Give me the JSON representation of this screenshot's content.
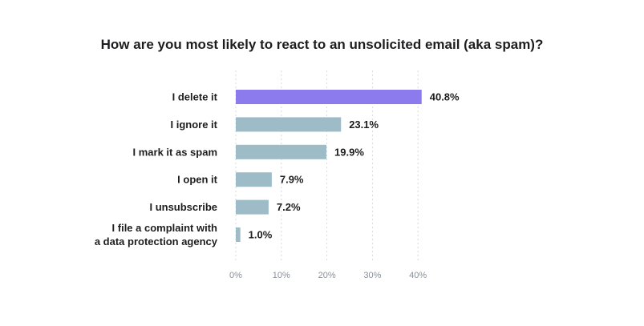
{
  "chart_data": {
    "type": "bar",
    "orientation": "horizontal",
    "title": "How are you most likely to react to an unsolicited email (aka spam)?",
    "categories": [
      [
        "I delete it"
      ],
      [
        "I ignore it"
      ],
      [
        "I mark it as spam"
      ],
      [
        "I open it"
      ],
      [
        "I unsubscribe"
      ],
      [
        "I file a complaint with",
        "a data protection agency"
      ]
    ],
    "values": [
      40.8,
      23.1,
      19.9,
      7.9,
      7.2,
      1.0
    ],
    "value_labels": [
      "40.8%",
      "23.1%",
      "19.9%",
      "7.9%",
      "7.2%",
      "1.0%"
    ],
    "xlim": [
      0,
      40
    ],
    "ticks": [
      0,
      10,
      20,
      30,
      40
    ],
    "tick_labels": [
      "0%",
      "10%",
      "20%",
      "30%",
      "40%"
    ],
    "grid": true,
    "legend": "none",
    "colors": {
      "highlight": "#8b7bec",
      "default": "#9dbcc8",
      "grid": "#d5d8dc",
      "text": "#1d1d1f",
      "tick": "#8a8f98"
    },
    "highlight_index": 0
  }
}
